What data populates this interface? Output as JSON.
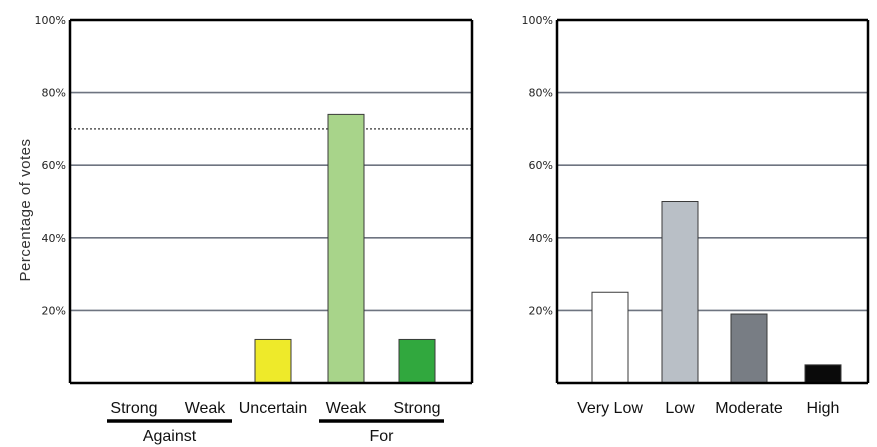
{
  "chart_data": [
    {
      "type": "bar",
      "ylabel": "Percentage of votes",
      "ylim": [
        0,
        100
      ],
      "yticks": [
        20,
        40,
        60,
        80,
        100
      ],
      "ytick_labels": [
        "20%",
        "40%",
        "60%",
        "80%",
        "100%"
      ],
      "grid": true,
      "reference_line": 70,
      "categories": [
        "Strong",
        "Weak",
        "Uncertain",
        "Weak",
        "Strong"
      ],
      "values": [
        0,
        0,
        12,
        74,
        12
      ],
      "colors": [
        "#ffffff",
        "#ffffff",
        "#eeea2a",
        "#a8d48a",
        "#31a83e"
      ],
      "groups": [
        {
          "label": "Against",
          "categories": [
            0,
            1
          ]
        },
        {
          "label": "For",
          "categories": [
            3,
            4
          ]
        }
      ]
    },
    {
      "type": "bar",
      "ylim": [
        0,
        100
      ],
      "yticks": [
        20,
        40,
        60,
        80,
        100
      ],
      "ytick_labels": [
        "20%",
        "40%",
        "60%",
        "80%",
        "100%"
      ],
      "grid": true,
      "categories": [
        "Very Low",
        "Low",
        "Moderate",
        "High"
      ],
      "values": [
        25,
        50,
        19,
        5
      ],
      "colors": [
        "#ffffff",
        "#b9bfc6",
        "#787d84",
        "#0a0a0a"
      ]
    }
  ]
}
